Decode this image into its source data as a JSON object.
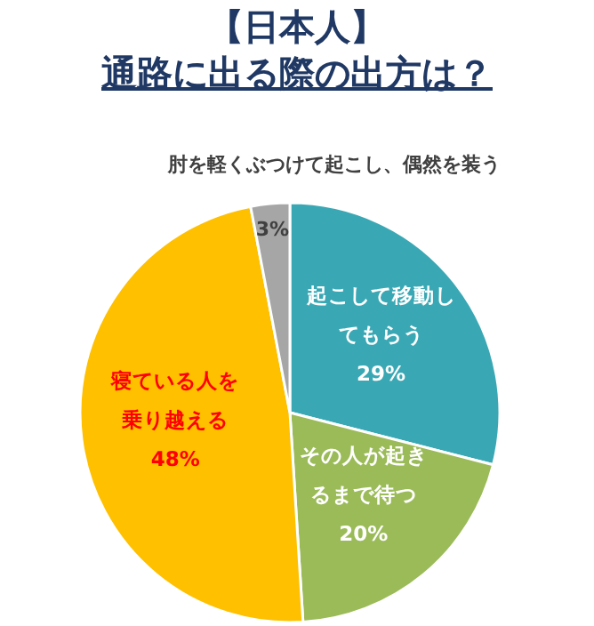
{
  "chart_data": {
    "type": "pie",
    "title": "【日本人】",
    "subtitle": "通路に出る際の出方は？",
    "categories": [
      "起こして移動してもらう",
      "その人が起きるまで待つ",
      "寝ている人を乗り越える",
      "肘を軽くぶつけて起こし、偶然を装う"
    ],
    "values": [
      29,
      20,
      48,
      3
    ],
    "colors": [
      "#3aa8b4",
      "#9bbb59",
      "#ffc000",
      "#a6a6a6"
    ],
    "value_labels": [
      "29%",
      "20%",
      "48%",
      "3%"
    ],
    "legend": false
  }
}
